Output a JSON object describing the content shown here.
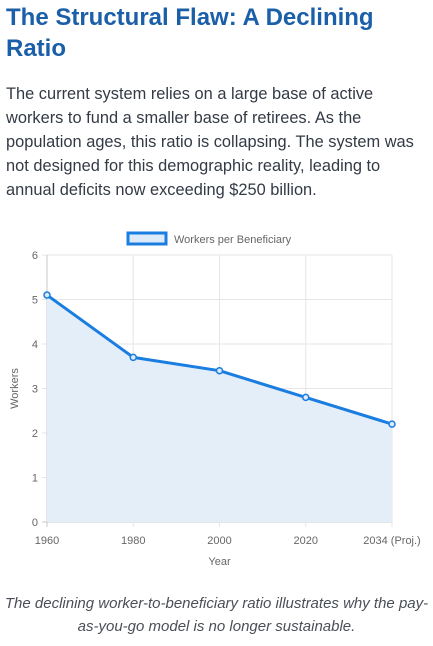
{
  "section": {
    "title": "The Structural Flaw: A Declining Ratio",
    "intro": "The current system relies on a large base of active workers to fund a smaller base of retirees. As the population ages, this ratio is collapsing. The system was not designed for this demographic reality, leading to annual deficits now exceeding $250 billion.",
    "caption": "The declining worker-to-beneficiary ratio illustrates why the pay-as-you-go model is no longer sustainable."
  },
  "chart_data": {
    "type": "line",
    "title": "",
    "xlabel": "Year",
    "ylabel": "Workers",
    "categories": [
      "1960",
      "1980",
      "2000",
      "2020",
      "2034 (Proj.)"
    ],
    "series": [
      {
        "name": "Workers per Beneficiary",
        "values": [
          5.1,
          3.7,
          3.4,
          2.8,
          2.2
        ],
        "color": "#1a7de0",
        "fill": "#e3eef9"
      }
    ],
    "ylim": [
      0,
      6
    ],
    "yticks": [
      0,
      1,
      2,
      3,
      4,
      5,
      6
    ],
    "grid": true,
    "legend": "top"
  }
}
